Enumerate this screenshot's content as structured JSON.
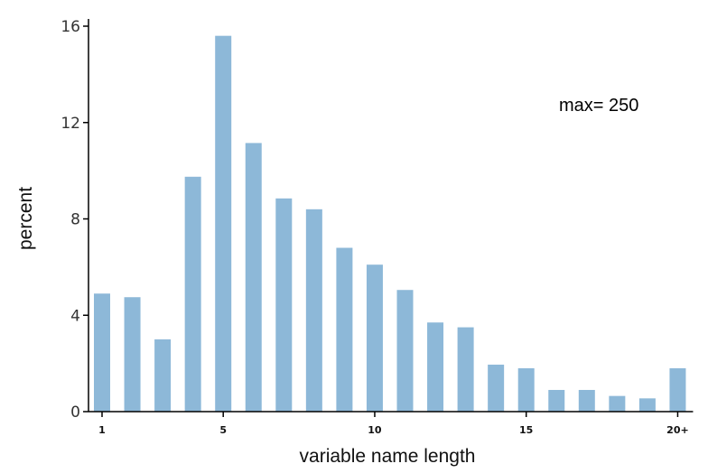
{
  "chart_data": {
    "type": "bar",
    "xlabel": "variable name length",
    "ylabel": "percent",
    "annotation": "max= 250",
    "ylim": [
      0,
      16
    ],
    "yticks": [
      0,
      4,
      8,
      12,
      16
    ],
    "xticks": [
      {
        "pos": 1,
        "label": "1"
      },
      {
        "pos": 5,
        "label": "5"
      },
      {
        "pos": 10,
        "label": "10"
      },
      {
        "pos": 15,
        "label": "15"
      },
      {
        "pos": 20,
        "label": "20+"
      }
    ],
    "bar_color": "#8DB8D8",
    "x": [
      1,
      2,
      3,
      4,
      5,
      6,
      7,
      8,
      9,
      10,
      11,
      12,
      13,
      14,
      15,
      16,
      17,
      18,
      19,
      20
    ],
    "values": [
      4.9,
      4.75,
      3.0,
      9.75,
      15.6,
      11.15,
      8.85,
      8.4,
      6.8,
      6.1,
      5.05,
      3.7,
      3.5,
      1.95,
      1.8,
      0.9,
      0.9,
      0.65,
      0.55,
      1.8
    ]
  }
}
